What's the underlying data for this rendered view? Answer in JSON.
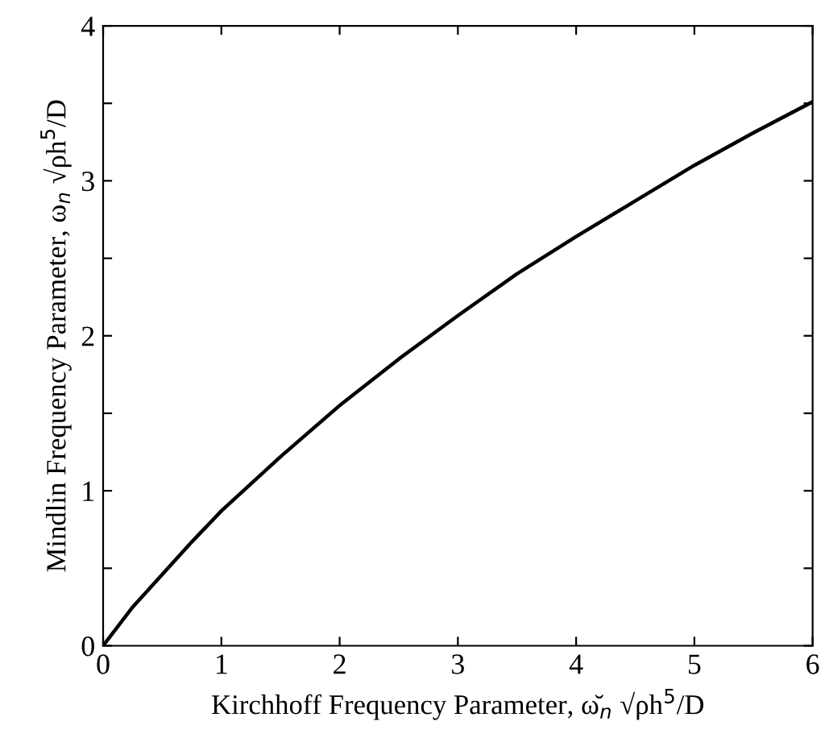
{
  "chart_data": {
    "type": "line",
    "xlabel": "Kirchhoff Frequency Parameter, ω̆$_{n}$ √ρh$^{5}$/D",
    "ylabel": "Mindlin Frequency Parameter, ω$_{n}$ √ρh$^{5}$/D",
    "x": [
      0,
      0.25,
      0.5,
      0.75,
      1,
      1.5,
      2,
      2.5,
      3,
      3.5,
      4,
      4.5,
      5,
      5.5,
      6
    ],
    "series": [
      {
        "color": "#000000",
        "values": [
          0,
          0.25,
          0.46,
          0.67,
          0.87,
          1.22,
          1.55,
          1.85,
          2.13,
          2.4,
          2.64,
          2.87,
          3.1,
          3.31,
          3.51
        ]
      }
    ],
    "xlim": [
      0,
      6
    ],
    "ylim": [
      0,
      4
    ],
    "xticks": [
      0,
      1,
      2,
      3,
      4,
      5,
      6
    ],
    "yticks": [
      0,
      {
        "value": 0.5,
        "label": null
      },
      1,
      {
        "value": 1.5,
        "label": null
      },
      2,
      {
        "value": 2.5,
        "label": null
      },
      3,
      {
        "value": 3.5,
        "label": null
      },
      4
    ],
    "grid": false,
    "legend": false,
    "marker": "none",
    "line_style": "solid"
  }
}
